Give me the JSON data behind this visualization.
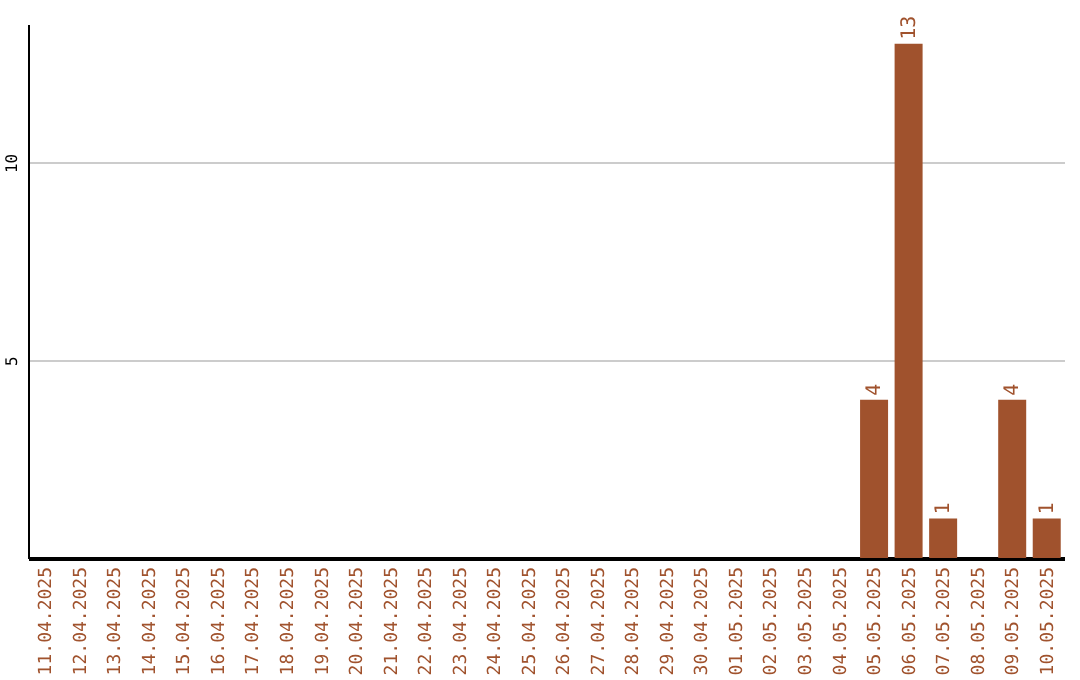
{
  "chart_data": {
    "type": "bar",
    "categories": [
      "11.04.2025",
      "12.04.2025",
      "13.04.2025",
      "14.04.2025",
      "15.04.2025",
      "16.04.2025",
      "17.04.2025",
      "18.04.2025",
      "19.04.2025",
      "20.04.2025",
      "21.04.2025",
      "22.04.2025",
      "23.04.2025",
      "24.04.2025",
      "25.04.2025",
      "26.04.2025",
      "27.04.2025",
      "28.04.2025",
      "29.04.2025",
      "30.04.2025",
      "01.05.2025",
      "02.05.2025",
      "03.05.2025",
      "04.05.2025",
      "05.05.2025",
      "06.05.2025",
      "07.05.2025",
      "08.05.2025",
      "09.05.2025",
      "10.05.2025"
    ],
    "values": [
      0,
      0,
      0,
      0,
      0,
      0,
      0,
      0,
      0,
      0,
      0,
      0,
      0,
      0,
      0,
      0,
      0,
      0,
      0,
      0,
      0,
      0,
      0,
      0,
      4,
      13,
      1,
      0,
      4,
      1
    ],
    "value_labels": [
      null,
      null,
      null,
      null,
      null,
      null,
      null,
      null,
      null,
      null,
      null,
      null,
      null,
      null,
      null,
      null,
      null,
      null,
      null,
      null,
      null,
      null,
      null,
      null,
      "4",
      "13",
      "1",
      null,
      "4",
      "1"
    ],
    "color": "#a0522d",
    "ylim": [
      0,
      13.5
    ],
    "yticks": [
      5,
      10
    ],
    "grid": "y"
  }
}
